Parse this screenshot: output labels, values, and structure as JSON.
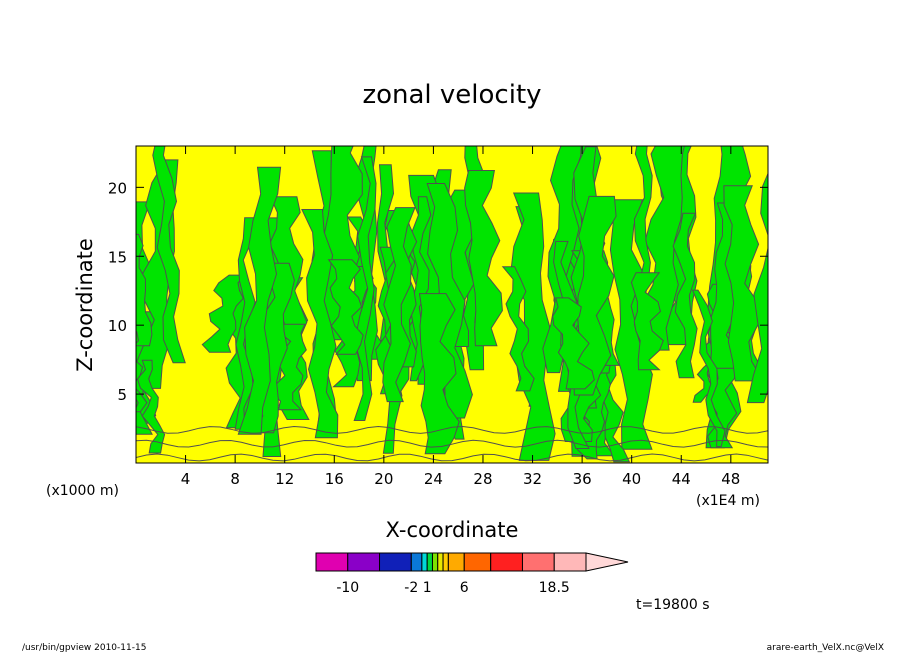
{
  "chart_data": {
    "type": "heatmap",
    "title": "zonal velocity",
    "xlabel": "X-coordinate",
    "ylabel": "Z-coordinate",
    "xlim": [
      0,
      51
    ],
    "ylim": [
      0,
      23
    ],
    "x_ticks": [
      4,
      8,
      12,
      16,
      20,
      24,
      28,
      32,
      36,
      40,
      44,
      48
    ],
    "y_ticks": [
      5,
      10,
      15,
      20
    ],
    "x_unit": "(x1E4 m)",
    "z_unit": "(x1000 m)",
    "colors": {
      "positive": "#ffff00",
      "negative": "#00e400",
      "contour": "#505050"
    },
    "colorbar": {
      "swatches": [
        "#e000b0",
        "#8a00c8",
        "#1020b8",
        "#0a78d8",
        "#00d8d8",
        "#00d840",
        "#7ee000",
        "#e6e600",
        "#ffcc00",
        "#ffaa00",
        "#ff6600",
        "#ff2020",
        "#ff7070",
        "#ffb8b8"
      ],
      "swatch_edges": [
        0,
        3,
        6,
        9,
        10,
        10.5,
        11,
        11.5,
        12,
        12.5,
        14,
        16.5,
        19.5,
        22.5,
        25.5
      ],
      "tick_labels": [
        "-10",
        "-2",
        "1",
        "6",
        "18.5"
      ]
    },
    "time_label": "t=19800 s"
  },
  "footer": {
    "left": "/usr/bin/gpview   2010-11-15",
    "right": "arare-earth_VelX.nc@VelX"
  }
}
